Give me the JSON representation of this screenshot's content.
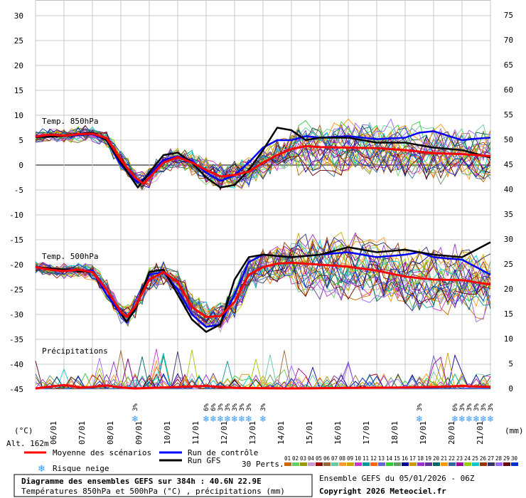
{
  "chart_data": {
    "type": "line",
    "title": "Diagramme des ensembles GEFS sur 384h : 40.6N 22.9E",
    "subtitle": "Températures 850hPa et 500hPa (°C) , précipitations (mm)",
    "left_axis": {
      "unit": "(°C)",
      "ticks": [
        30,
        25,
        20,
        15,
        10,
        5,
        0,
        -5,
        -10,
        -15,
        -20,
        -25,
        -30,
        -35,
        -40,
        -45
      ]
    },
    "right_axis": {
      "unit": "(mm)",
      "ticks": [
        75,
        70,
        65,
        60,
        55,
        50,
        45,
        40,
        35,
        30,
        25,
        20,
        15,
        10,
        5,
        0
      ]
    },
    "altitude": "Alt. 162m",
    "x_labels": [
      "06/01",
      "07/01",
      "08/01",
      "09/01",
      "10/01",
      "11/01",
      "12/01",
      "13/01",
      "14/01",
      "15/01",
      "16/01",
      "17/01",
      "18/01",
      "19/01",
      "20/01",
      "21/01"
    ],
    "x_units": "days since 05/01 06Z",
    "panels": [
      {
        "label": "Temp. 850hPa"
      },
      {
        "label": "Temp. 500hPa"
      },
      {
        "label": "Précipitations"
      }
    ],
    "series": [
      {
        "name": "Moyenne des scénarios",
        "color": "#ff0000",
        "t850": [
          [
            0,
            5.7
          ],
          [
            0.5,
            6.1
          ],
          [
            1,
            5.9
          ],
          [
            1.5,
            6.2
          ],
          [
            2,
            6.3
          ],
          [
            2.5,
            5.4
          ],
          [
            3,
            1.0
          ],
          [
            3.5,
            -2.5
          ],
          [
            3.8,
            -3.8
          ],
          [
            4,
            -2.5
          ],
          [
            4.5,
            0.5
          ],
          [
            5,
            1.6
          ],
          [
            5.5,
            0.5
          ],
          [
            6,
            -1.0
          ],
          [
            6.5,
            -2.3
          ],
          [
            7,
            -2.0
          ],
          [
            7.5,
            -1.3
          ],
          [
            8,
            0.5
          ],
          [
            8.5,
            2.0
          ],
          [
            9,
            3.2
          ],
          [
            9.5,
            3.8
          ],
          [
            10,
            3.6
          ],
          [
            11,
            3.5
          ],
          [
            12,
            3.4
          ],
          [
            13,
            3.0
          ],
          [
            14,
            2.4
          ],
          [
            15,
            2.2
          ],
          [
            16,
            1.8
          ]
        ],
        "t500": [
          [
            0,
            -20.5
          ],
          [
            0.5,
            -21.0
          ],
          [
            1,
            -21.3
          ],
          [
            1.5,
            -21.0
          ],
          [
            2,
            -21.5
          ],
          [
            2.5,
            -25.0
          ],
          [
            3,
            -29.5
          ],
          [
            3.2,
            -30.5
          ],
          [
            3.5,
            -28.5
          ],
          [
            4,
            -23.0
          ],
          [
            4.5,
            -21.5
          ],
          [
            5,
            -23.5
          ],
          [
            5.5,
            -28.5
          ],
          [
            6,
            -30.5
          ],
          [
            6.5,
            -30.3
          ],
          [
            7,
            -27.5
          ],
          [
            7.5,
            -22.0
          ],
          [
            8,
            -20.5
          ],
          [
            8.5,
            -19.8
          ],
          [
            9,
            -19.6
          ],
          [
            10,
            -20.0
          ],
          [
            11,
            -20.4
          ],
          [
            12,
            -21.2
          ],
          [
            13,
            -22.4
          ],
          [
            14,
            -23.0
          ],
          [
            15,
            -23.1
          ],
          [
            16,
            -24.0
          ]
        ],
        "precip": [
          [
            0,
            0
          ],
          [
            1,
            0.7
          ],
          [
            1.6,
            0.2
          ],
          [
            2,
            0.3
          ],
          [
            2.5,
            0.6
          ],
          [
            3,
            0.2
          ],
          [
            3.5,
            0
          ],
          [
            6,
            0.5
          ],
          [
            6.5,
            0.3
          ],
          [
            7,
            0.1
          ],
          [
            9,
            0
          ],
          [
            11,
            0.1
          ],
          [
            13,
            0.2
          ],
          [
            14,
            0.3
          ],
          [
            15,
            0.5
          ],
          [
            16,
            0.3
          ]
        ]
      },
      {
        "name": "Run de contrôle",
        "color": "#0000ff",
        "t850": [
          [
            0,
            5.8
          ],
          [
            1,
            5.9
          ],
          [
            2,
            6.2
          ],
          [
            2.5,
            5.0
          ],
          [
            3,
            0.0
          ],
          [
            3.6,
            -3.5
          ],
          [
            4,
            -2.0
          ],
          [
            4.5,
            1.0
          ],
          [
            5,
            1.8
          ],
          [
            5.5,
            0.8
          ],
          [
            6,
            -1.5
          ],
          [
            6.5,
            -3.2
          ],
          [
            7,
            -2.0
          ],
          [
            7.5,
            0.5
          ],
          [
            8,
            3.5
          ],
          [
            8.5,
            5.0
          ],
          [
            9,
            5.0
          ],
          [
            9.5,
            5.8
          ],
          [
            10,
            5.5
          ],
          [
            11,
            5.8
          ],
          [
            12,
            5.2
          ],
          [
            13,
            5.5
          ],
          [
            13.5,
            6.5
          ],
          [
            14,
            6.8
          ],
          [
            15,
            5.0
          ],
          [
            15.5,
            5.3
          ],
          [
            16,
            5.5
          ]
        ],
        "t500": [
          [
            0,
            -20.5
          ],
          [
            1,
            -21.0
          ],
          [
            2,
            -21.2
          ],
          [
            2.5,
            -26
          ],
          [
            3.2,
            -31.5
          ],
          [
            3.5,
            -29
          ],
          [
            4,
            -22
          ],
          [
            4.5,
            -21.5
          ],
          [
            5,
            -25
          ],
          [
            5.5,
            -30
          ],
          [
            6,
            -32.5
          ],
          [
            6.5,
            -32.0
          ],
          [
            7,
            -26
          ],
          [
            7.5,
            -19.5
          ],
          [
            8,
            -18.0
          ],
          [
            9,
            -18.5
          ],
          [
            10,
            -18.0
          ],
          [
            11,
            -17.5
          ],
          [
            12,
            -18.5
          ],
          [
            13,
            -18.0
          ],
          [
            13.5,
            -17.5
          ],
          [
            14,
            -18.5
          ],
          [
            15,
            -19.0
          ],
          [
            16,
            -22.0
          ]
        ]
      },
      {
        "name": "Run GFS",
        "color": "#000000",
        "t850": [
          [
            0,
            5.6
          ],
          [
            1,
            5.8
          ],
          [
            2,
            6.5
          ],
          [
            2.5,
            5.0
          ],
          [
            3,
            0.5
          ],
          [
            3.6,
            -4.5
          ],
          [
            4,
            -1.5
          ],
          [
            4.5,
            2.0
          ],
          [
            5,
            2.5
          ],
          [
            5.5,
            0.5
          ],
          [
            6,
            -2.5
          ],
          [
            6.5,
            -4.5
          ],
          [
            7,
            -4.0
          ],
          [
            7.5,
            -1.0
          ],
          [
            8,
            3.0
          ],
          [
            8.5,
            7.5
          ],
          [
            9,
            7.0
          ],
          [
            9.5,
            5.0
          ],
          [
            10,
            5.5
          ],
          [
            11,
            5.5
          ],
          [
            12,
            4.5
          ],
          [
            13,
            4.5
          ],
          [
            14,
            3.5
          ],
          [
            15,
            3.0
          ],
          [
            16,
            1.5
          ]
        ],
        "t500": [
          [
            0,
            -20.5
          ],
          [
            1,
            -21.0
          ],
          [
            2,
            -21.5
          ],
          [
            2.5,
            -25
          ],
          [
            3.2,
            -31.5
          ],
          [
            3.5,
            -29
          ],
          [
            4,
            -21.5
          ],
          [
            4.5,
            -21.0
          ],
          [
            5,
            -26
          ],
          [
            5.5,
            -31
          ],
          [
            6,
            -33.5
          ],
          [
            6.5,
            -32.0
          ],
          [
            7,
            -23
          ],
          [
            7.5,
            -18.5
          ],
          [
            8,
            -18.0
          ],
          [
            9,
            -18.5
          ],
          [
            10,
            -18.0
          ],
          [
            11,
            -16.5
          ],
          [
            12,
            -17.5
          ],
          [
            13,
            -17.0
          ],
          [
            14,
            -18.0
          ],
          [
            15,
            -18.5
          ],
          [
            16,
            -15.5
          ]
        ]
      }
    ],
    "perturbations": {
      "count_label": "30 Perts.",
      "numbers": [
        "01",
        "02",
        "03",
        "04",
        "05",
        "06",
        "07",
        "08",
        "09",
        "10",
        "11",
        "12",
        "13",
        "14",
        "15",
        "16",
        "17",
        "18",
        "19",
        "20",
        "21",
        "22",
        "23",
        "24",
        "25",
        "26",
        "27",
        "28",
        "29",
        "30"
      ]
    },
    "snow_risk": [
      {
        "x": 3.5,
        "pct": "3%"
      },
      {
        "x": 6,
        "pct": "6%"
      },
      {
        "x": 6.25,
        "pct": "6%"
      },
      {
        "x": 6.5,
        "pct": "3%"
      },
      {
        "x": 6.75,
        "pct": "3%"
      },
      {
        "x": 7,
        "pct": "3%"
      },
      {
        "x": 7.25,
        "pct": "3%"
      },
      {
        "x": 7.5,
        "pct": "3%"
      },
      {
        "x": 8,
        "pct": "3%"
      },
      {
        "x": 13.5,
        "pct": "3%"
      },
      {
        "x": 14.75,
        "pct": "6%"
      },
      {
        "x": 15,
        "pct": "3%"
      },
      {
        "x": 15.25,
        "pct": "3%"
      },
      {
        "x": 15.5,
        "pct": "3%"
      },
      {
        "x": 15.75,
        "pct": "3%"
      },
      {
        "x": 16,
        "pct": "3%"
      }
    ]
  },
  "legend": {
    "mean": "Moyenne des scénarios",
    "control": "Run de contrôle",
    "gfs": "Run GFS",
    "snow": "Risque neige",
    "perts": "30 Perts."
  },
  "footer": {
    "title": "Diagramme des ensembles GEFS sur 384h : 40.6N 22.9E",
    "subtitle": "Températures 850hPa et 500hPa (°C) , précipitations (mm)",
    "run": "Ensemble GEFS du 05/01/2026 - 06Z",
    "copyright": "Copyright 2026 Meteociel.fr"
  },
  "colors": {
    "mean": "#ff0000",
    "control": "#0000ff",
    "gfs": "#000000",
    "snow": "#3399ff",
    "grid": "#c0c0c0"
  }
}
